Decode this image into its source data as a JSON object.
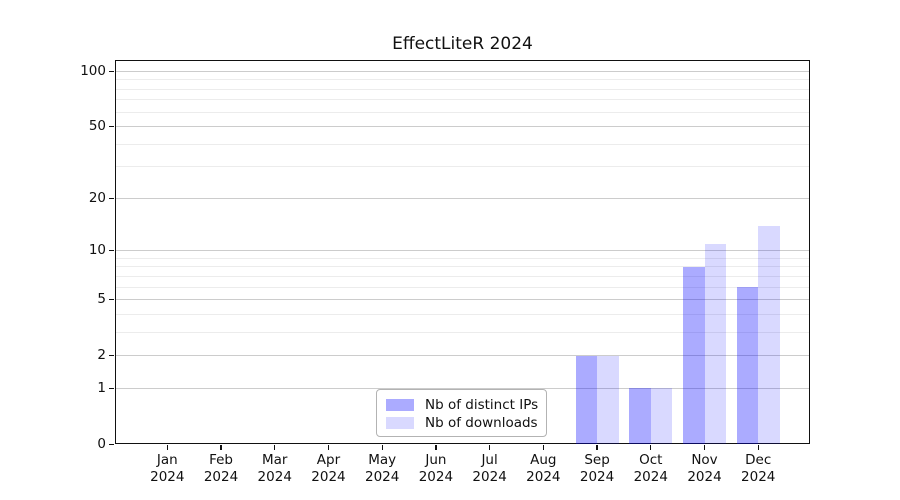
{
  "chart_data": {
    "type": "bar",
    "title": "EffectLiteR 2024",
    "categories": [
      "Jan 2024",
      "Feb 2024",
      "Mar 2024",
      "Apr 2024",
      "May 2024",
      "Jun 2024",
      "Jul 2024",
      "Aug 2024",
      "Sep 2024",
      "Oct 2024",
      "Nov 2024",
      "Dec 2024"
    ],
    "series": [
      {
        "name": "Nb of distinct IPs",
        "color": "rgba(0,0,255,0.33)",
        "values": [
          0,
          0,
          0,
          0,
          0,
          0,
          0,
          0,
          2,
          1,
          8,
          6
        ]
      },
      {
        "name": "Nb of downloads",
        "color": "rgba(0,0,255,0.15)",
        "values": [
          0,
          0,
          0,
          0,
          0,
          0,
          0,
          0,
          2,
          1,
          11,
          14
        ]
      }
    ],
    "yscale": "log1p",
    "y_major_ticks": [
      0,
      1,
      2,
      5,
      10,
      20,
      50,
      100
    ],
    "y_minor_ticks": [
      3,
      4,
      6,
      7,
      8,
      9,
      30,
      40,
      60,
      70,
      80,
      90
    ],
    "xlabel": "",
    "ylabel": "",
    "grid": "horizontal",
    "legend": {
      "location": "inside-bottom-center",
      "labels": [
        "Nb of distinct IPs",
        "Nb of downloads"
      ]
    },
    "colors": {
      "bar_distinct_ips": "rgba(0,0,255,0.33)",
      "bar_downloads": "rgba(0,0,255,0.15)",
      "major_grid": "#cccccc",
      "minor_grid": "#ececec",
      "axis": "#111111",
      "text": "#111111",
      "legend_border": "#b3b3b3",
      "background": "#ffffff"
    }
  }
}
